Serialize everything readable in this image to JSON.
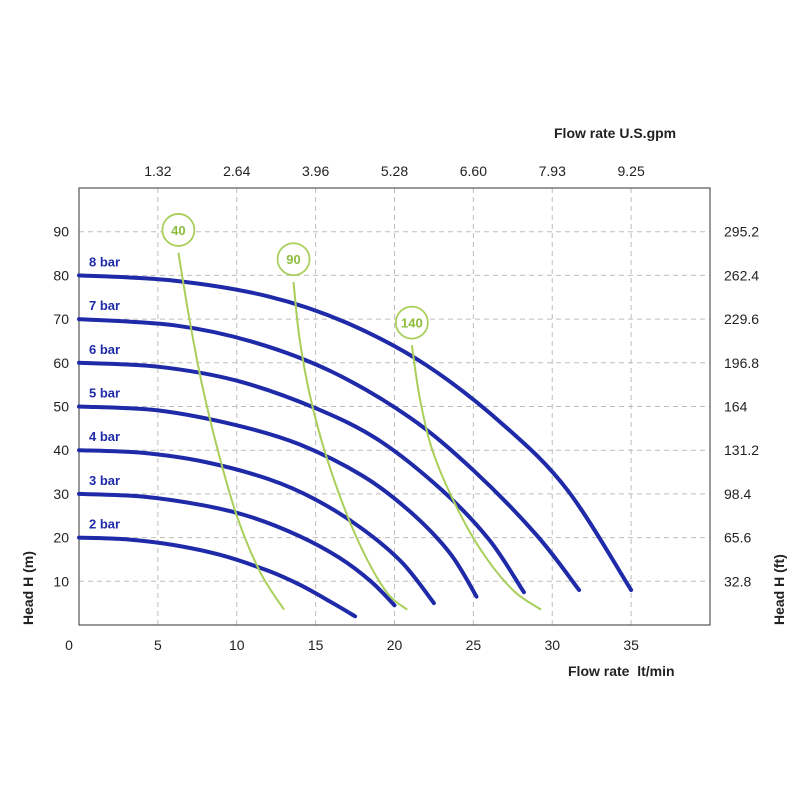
{
  "chart_data": {
    "type": "line",
    "title": "",
    "xlabel": "Flow rate  lt/min",
    "x2label": "Flow rate U.S.gpm",
    "ylabel": "Head H (m)",
    "y2label": "Head H (ft)",
    "xlim": [
      0,
      40
    ],
    "ylim": [
      0,
      100
    ],
    "x_ticks": [
      "0",
      "5",
      "10",
      "15",
      "20",
      "25",
      "30",
      "35"
    ],
    "x_tick_values": [
      0,
      5,
      10,
      15,
      20,
      25,
      30,
      35
    ],
    "y_ticks": [
      "10",
      "20",
      "30",
      "40",
      "50",
      "60",
      "70",
      "80",
      "90"
    ],
    "y_tick_values": [
      10,
      20,
      30,
      40,
      50,
      60,
      70,
      80,
      90
    ],
    "x2_ticks": [
      "1.32",
      "2.64",
      "3.96",
      "5.28",
      "6.60",
      "7.93",
      "9.25"
    ],
    "x2_tick_positions": [
      5,
      10,
      15,
      20,
      25,
      30,
      35
    ],
    "y2_ticks": [
      "32.8",
      "65.6",
      "98.4",
      "131.2",
      "164",
      "196.8",
      "229.6",
      "262.4",
      "295.2"
    ],
    "y2_tick_positions": [
      10,
      20,
      30,
      40,
      50,
      60,
      70,
      80,
      90
    ],
    "grid": true,
    "pressure_color": "#1f2aa8",
    "consumption_color": "#a9cf5a",
    "series": [
      {
        "name": "2 bar",
        "x": [
          0,
          3,
          6,
          9,
          12,
          14,
          16,
          17.5
        ],
        "y": [
          20,
          19.6,
          18.3,
          16,
          12.4,
          9.2,
          5.2,
          2
        ]
      },
      {
        "name": "3 bar",
        "x": [
          0,
          4,
          8,
          11,
          14,
          16.5,
          18.5,
          20
        ],
        "y": [
          30,
          29.4,
          27.3,
          24.6,
          20.3,
          15.4,
          10,
          4.5
        ]
      },
      {
        "name": "4 bar",
        "x": [
          0,
          4,
          8,
          12,
          15,
          18,
          20.5,
          22.5
        ],
        "y": [
          40,
          39.4,
          37.3,
          33.4,
          28.7,
          21.9,
          14.2,
          5
        ]
      },
      {
        "name": "5 bar",
        "x": [
          0,
          5,
          10,
          14,
          18,
          21,
          23.5,
          25.2
        ],
        "y": [
          50,
          49.1,
          45.7,
          41.3,
          34.1,
          25.9,
          16.5,
          6.5
        ]
      },
      {
        "name": "6 bar",
        "x": [
          0,
          5,
          10,
          15,
          19,
          23,
          26,
          28.2
        ],
        "y": [
          60,
          59.1,
          55.9,
          49.6,
          42.3,
          30.9,
          19.5,
          7.5
        ]
      },
      {
        "name": "7 bar",
        "x": [
          0,
          6,
          11,
          16,
          21,
          25,
          29,
          31.7
        ],
        "y": [
          70,
          68.6,
          64.8,
          58,
          47.4,
          35.4,
          20.6,
          8
        ]
      },
      {
        "name": "8 bar",
        "x": [
          0,
          6,
          12,
          17,
          22,
          27,
          31,
          35
        ],
        "y": [
          80,
          78.8,
          75.2,
          69.1,
          59.5,
          45.5,
          30.7,
          8
        ]
      }
    ],
    "consumption_lines": [
      {
        "label": "40",
        "bubble": [
          6.3,
          90.4
        ],
        "x": [
          6.3,
          7.0,
          7.8,
          8.8,
          10.0,
          11.5,
          13.0
        ],
        "y": [
          85.2,
          70,
          55,
          40,
          25,
          12,
          3.5
        ]
      },
      {
        "label": "90",
        "bubble": [
          13.6,
          83.7
        ],
        "x": [
          13.6,
          14.0,
          14.8,
          16.0,
          17.6,
          19.4,
          20.8
        ],
        "y": [
          78.5,
          65,
          50,
          35,
          20,
          8,
          3.5
        ]
      },
      {
        "label": "140",
        "bubble": [
          21.1,
          69.2
        ],
        "x": [
          21.1,
          21.6,
          22.4,
          23.8,
          25.5,
          27.5,
          29.3
        ],
        "y": [
          64,
          52,
          40,
          28,
          17,
          8,
          3.5
        ]
      }
    ]
  }
}
